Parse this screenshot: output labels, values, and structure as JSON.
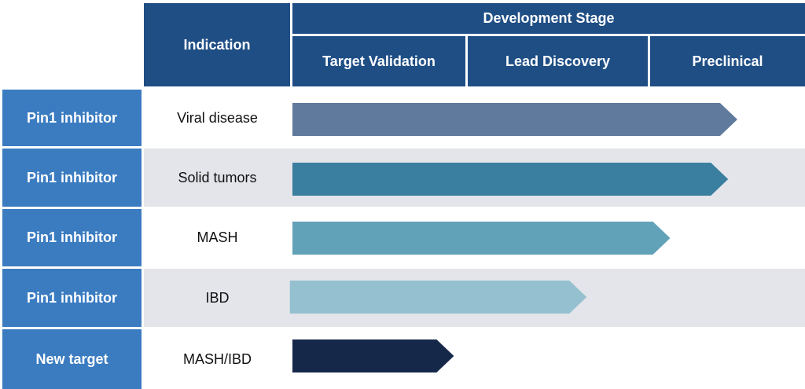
{
  "header": {
    "indication_label": "Indication",
    "development_stage_label": "Development Stage",
    "stages": [
      "Target Validation",
      "Lead Discovery",
      "Preclinical"
    ]
  },
  "rows": [
    {
      "program": "Pin1 inhibitor",
      "indication": "Viral disease",
      "progress": 0.868,
      "color": "#5f7a9c"
    },
    {
      "program": "Pin1 inhibitor",
      "indication": "Solid tumors",
      "progress": 0.85,
      "color": "#3a7ea0"
    },
    {
      "program": "Pin1 inhibitor",
      "indication": "MASH",
      "progress": 0.737,
      "color": "#62a2b9"
    },
    {
      "program": "Pin1 inhibitor",
      "indication": "IBD",
      "progress": 0.574,
      "color": "#95c0d0",
      "start": -0.005
    },
    {
      "program": "New target",
      "indication": "MASH/IBD",
      "progress": 0.315,
      "color": "#162849"
    }
  ]
}
